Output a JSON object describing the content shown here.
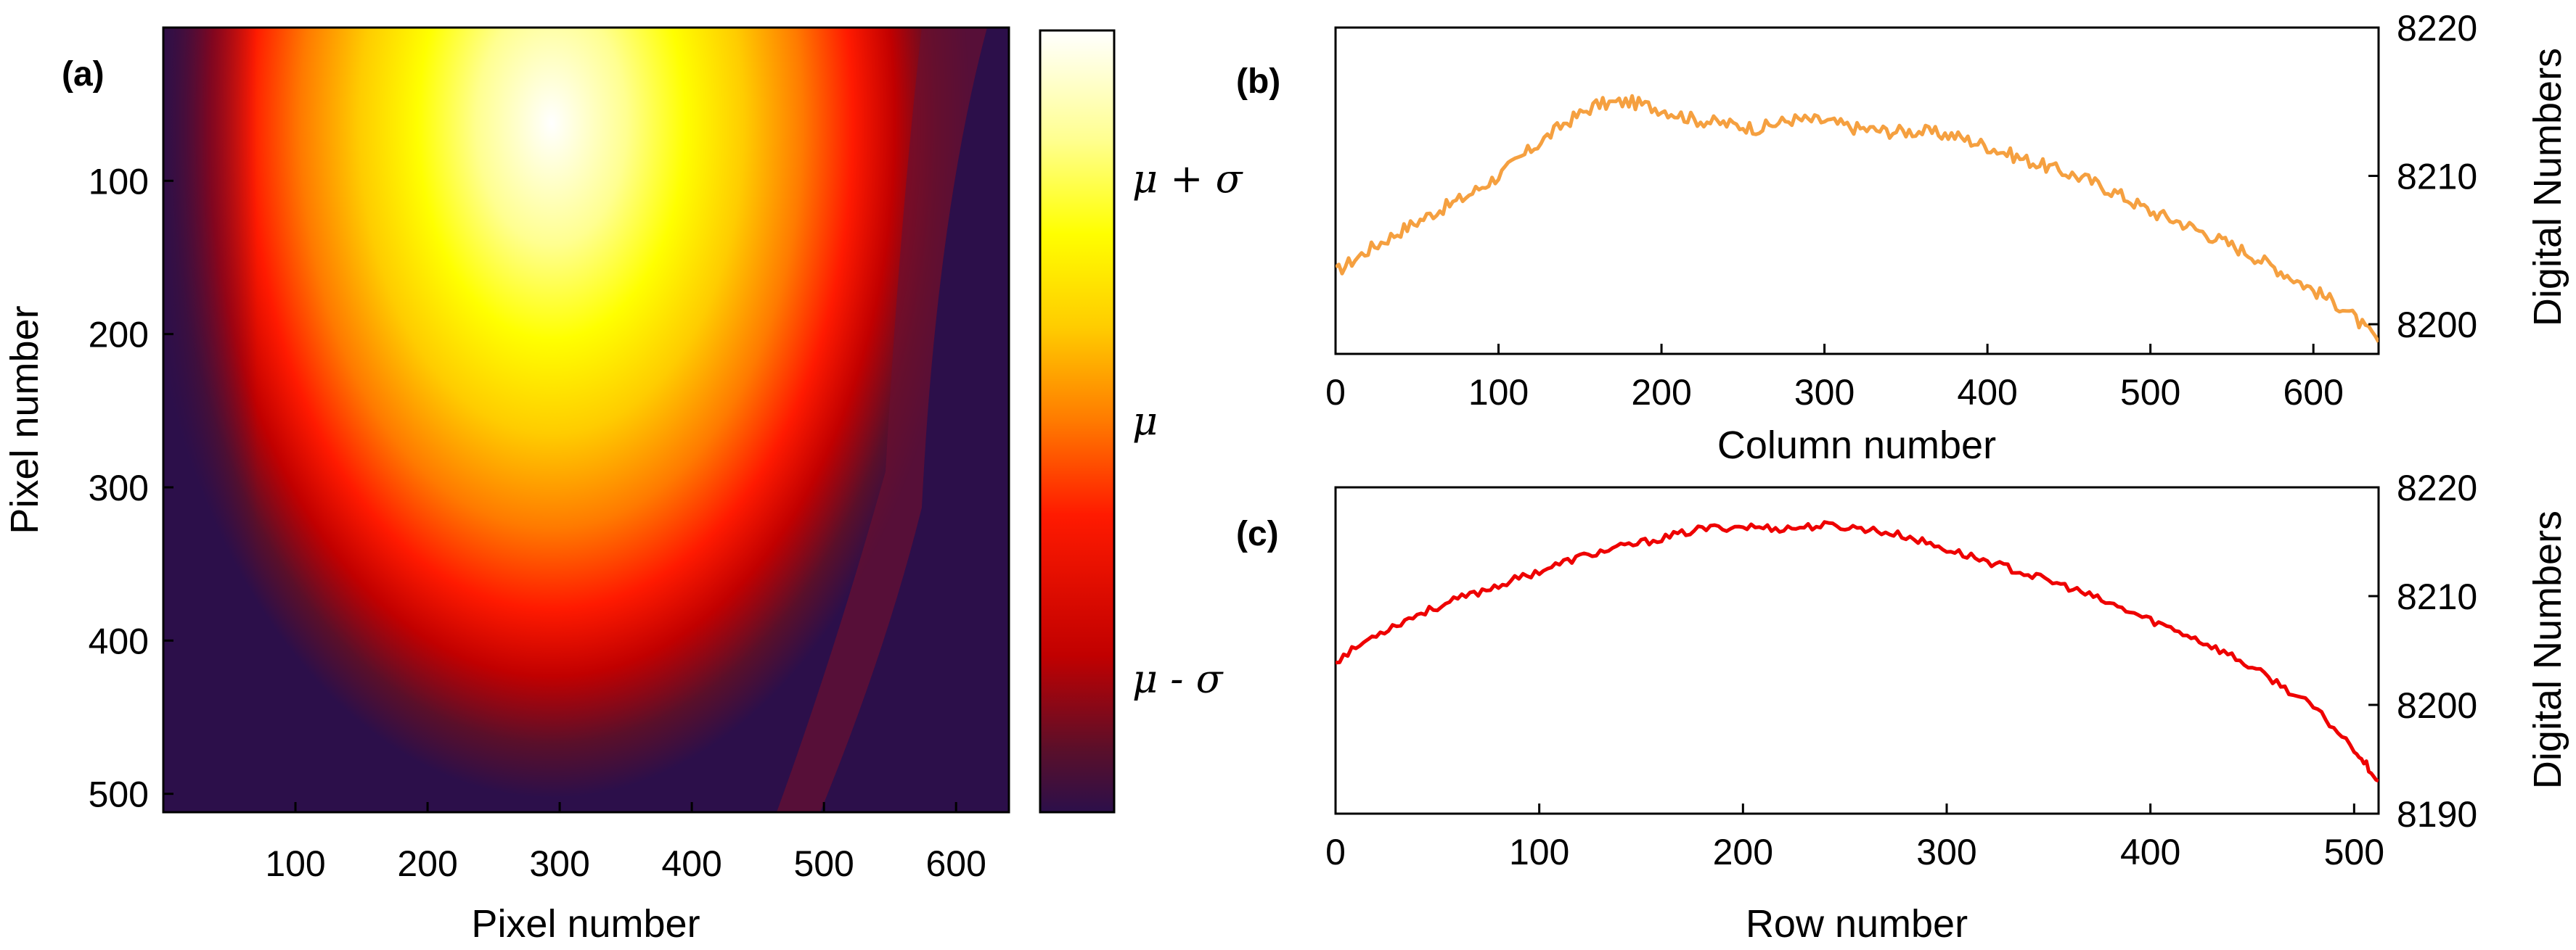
{
  "chart_data": [
    {
      "panel_label": "(a)",
      "type": "heatmap",
      "title": "",
      "xlabel": "Pixel number",
      "ylabel": "Pixel number",
      "xlim": [
        0,
        640
      ],
      "ylim": [
        0,
        512
      ],
      "x_ticks": [
        100,
        200,
        300,
        400,
        500,
        600
      ],
      "y_ticks": [
        100,
        200,
        300,
        400,
        500
      ],
      "colormap": "hot",
      "colorbar_labels": [
        {
          "label": "μ + σ",
          "level": 0.81
        },
        {
          "label": "μ",
          "level": 0.5
        },
        {
          "label": "μ - σ",
          "level": 0.17
        }
      ],
      "colors": [
        "#2c0f4a",
        "#5a0f2a",
        "#c10000",
        "#ff1a00",
        "#ff7a00",
        "#ffcc00",
        "#ffff00",
        "#ffff90",
        "#ffffff"
      ]
    },
    {
      "panel_label": "(b)",
      "type": "line",
      "xlabel": "Column number",
      "ylabel": "Digital Numbers",
      "xlim": [
        0,
        640
      ],
      "ylim": [
        8198,
        8220
      ],
      "x_ticks": [
        0,
        100,
        200,
        300,
        400,
        500,
        600
      ],
      "y_ticks": [
        8200,
        8210,
        8220
      ],
      "color": "#f5a040",
      "series": [
        {
          "name": "column profile",
          "x": [
            0,
            20,
            40,
            60,
            80,
            100,
            120,
            140,
            160,
            180,
            200,
            220,
            240,
            260,
            280,
            300,
            320,
            340,
            360,
            380,
            400,
            420,
            440,
            460,
            480,
            500,
            520,
            540,
            560,
            580,
            600,
            620,
            640
          ],
          "y": [
            8203.5,
            8205,
            8206.3,
            8207.5,
            8208.6,
            8210,
            8211.8,
            8213.5,
            8214.8,
            8215,
            8214.5,
            8213.8,
            8213.5,
            8213.2,
            8213.8,
            8213.7,
            8213.2,
            8213,
            8213,
            8212.7,
            8212,
            8211.2,
            8210.5,
            8209.8,
            8208.8,
            8207.6,
            8206.8,
            8205.8,
            8204.8,
            8203.6,
            8202.3,
            8201,
            8198.8
          ]
        }
      ]
    },
    {
      "panel_label": "(c)",
      "type": "line",
      "xlabel": "Row number",
      "ylabel": "Digital Numbers",
      "xlim": [
        0,
        512
      ],
      "ylim": [
        8190,
        8220
      ],
      "x_ticks": [
        0,
        100,
        200,
        300,
        400,
        500
      ],
      "y_ticks": [
        8190,
        8200,
        8210,
        8220
      ],
      "color": "#ee0000",
      "series": [
        {
          "name": "row profile",
          "x": [
            0,
            20,
            40,
            60,
            80,
            100,
            120,
            140,
            160,
            180,
            200,
            220,
            240,
            260,
            280,
            300,
            320,
            340,
            360,
            380,
            400,
            420,
            440,
            460,
            480,
            500,
            512
          ],
          "y": [
            8204,
            8206.5,
            8208.3,
            8209.7,
            8211,
            8212.3,
            8213.6,
            8214.5,
            8215.3,
            8216.2,
            8216.4,
            8216.2,
            8216.5,
            8216.2,
            8215.5,
            8214.3,
            8213.2,
            8212,
            8210.8,
            8209.3,
            8207.8,
            8206.3,
            8204.5,
            8202.3,
            8199.8,
            8196,
            8193
          ]
        }
      ]
    }
  ]
}
